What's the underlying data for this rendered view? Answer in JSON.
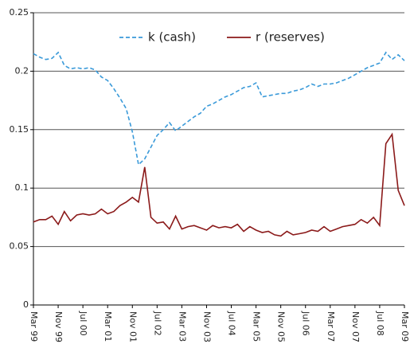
{
  "chart_data": {
    "type": "line",
    "categories": [
      "Mar 99",
      null,
      null,
      null,
      "Nov 99",
      null,
      null,
      null,
      "Jul 00",
      null,
      null,
      null,
      "Mar 01",
      null,
      null,
      null,
      "Nov 01",
      null,
      null,
      null,
      "Jul 02",
      null,
      null,
      null,
      "Mar 03",
      null,
      null,
      null,
      "Nov 03",
      null,
      null,
      null,
      "Jul 04",
      null,
      null,
      null,
      "Mar 05",
      null,
      null,
      null,
      "Nov 05",
      null,
      null,
      null,
      "Jul 06",
      null,
      null,
      null,
      "Mar 07",
      null,
      null,
      null,
      "Nov 07",
      null,
      null,
      null,
      "Jul 08",
      null,
      null,
      null,
      "Mar 09"
    ],
    "series": [
      {
        "name": "k (cash)",
        "color": "#3a9ad9",
        "dashed": true,
        "values": [
          0.215,
          0.212,
          0.21,
          0.211,
          0.216,
          0.205,
          0.202,
          0.203,
          0.202,
          0.203,
          0.201,
          0.195,
          0.192,
          0.185,
          0.177,
          0.168,
          0.148,
          0.12,
          0.125,
          0.135,
          0.145,
          0.15,
          0.156,
          0.149,
          0.153,
          0.157,
          0.161,
          0.164,
          0.17,
          0.172,
          0.175,
          0.178,
          0.18,
          0.183,
          0.186,
          0.187,
          0.19,
          0.178,
          0.179,
          0.18,
          0.181,
          0.181,
          0.183,
          0.184,
          0.186,
          0.189,
          0.187,
          0.189,
          0.189,
          0.19,
          0.192,
          0.194,
          0.197,
          0.2,
          0.203,
          0.205,
          0.207,
          0.216,
          0.21,
          0.214,
          0.209
        ]
      },
      {
        "name": "r (reserves)",
        "color": "#8b1a1a",
        "dashed": false,
        "values": [
          0.071,
          0.073,
          0.073,
          0.076,
          0.069,
          0.08,
          0.072,
          0.077,
          0.078,
          0.077,
          0.078,
          0.082,
          0.078,
          0.08,
          0.085,
          0.088,
          0.092,
          0.088,
          0.118,
          0.075,
          0.07,
          0.071,
          0.065,
          0.076,
          0.065,
          0.067,
          0.068,
          0.066,
          0.064,
          0.068,
          0.066,
          0.067,
          0.066,
          0.069,
          0.063,
          0.067,
          0.064,
          0.062,
          0.063,
          0.06,
          0.059,
          0.063,
          0.06,
          0.061,
          0.062,
          0.064,
          0.063,
          0.067,
          0.063,
          0.065,
          0.067,
          0.068,
          0.069,
          0.073,
          0.07,
          0.075,
          0.068,
          0.138,
          0.146,
          0.098,
          0.085
        ]
      }
    ],
    "ylim": [
      0,
      0.25
    ],
    "yticks": [
      0,
      0.05,
      0.1,
      0.15,
      0.2,
      0.25
    ],
    "grid": true
  }
}
